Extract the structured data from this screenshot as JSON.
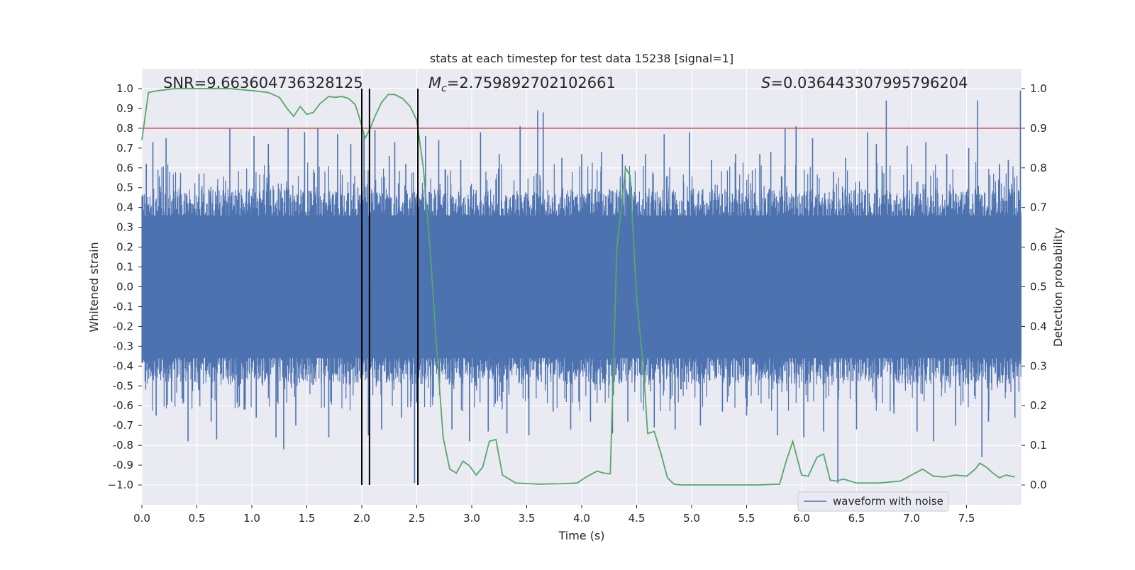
{
  "chart_data": {
    "type": "line",
    "title": "stats at each timestep for test data 15238 [signal=1]",
    "xlabel": "Time (s)",
    "ylabel": "Whitened strain",
    "ylabel_right": "Detection probability",
    "xlim": [
      0.0,
      8.0
    ],
    "ylim": [
      -1.1,
      1.1
    ],
    "ylim_right": [
      -0.05,
      1.05
    ],
    "x_ticks": [
      "0.0",
      "0.5",
      "1.0",
      "1.5",
      "2.0",
      "2.5",
      "3.0",
      "3.5",
      "4.0",
      "4.5",
      "5.0",
      "5.5",
      "6.0",
      "6.5",
      "7.0",
      "7.5"
    ],
    "y_ticks": [
      "1.0",
      "0.9",
      "0.8",
      "0.7",
      "0.6",
      "0.5",
      "0.4",
      "0.3",
      "0.2",
      "0.1",
      "0.0",
      "-0.1",
      "-0.2",
      "-0.3",
      "-0.4",
      "-0.5",
      "-0.6",
      "-0.7",
      "-0.8",
      "-0.9",
      "−1.0"
    ],
    "y_tick_values": [
      1.0,
      0.9,
      0.8,
      0.7,
      0.6,
      0.5,
      0.4,
      0.3,
      0.2,
      0.1,
      0.0,
      -0.1,
      -0.2,
      -0.3,
      -0.4,
      -0.5,
      -0.6,
      -0.7,
      -0.8,
      -0.9,
      -1.0
    ],
    "y_right_ticks": [
      "1.0",
      "0.9",
      "0.8",
      "0.7",
      "0.6",
      "0.5",
      "0.4",
      "0.3",
      "0.2",
      "0.1",
      "0.0"
    ],
    "y_right_tick_values": [
      1.0,
      0.9,
      0.8,
      0.7,
      0.6,
      0.5,
      0.4,
      0.3,
      0.2,
      0.1,
      0.0
    ],
    "annotations": {
      "snr": "SNR=9.663604736328125",
      "mc_symbol": "M",
      "mc_sub": "c",
      "mc_value": "=2.759892702102661",
      "s_symbol": "S",
      "s_value": "=0.036443307995796204"
    },
    "threshold": {
      "value": 0.9,
      "axis": "right",
      "color": "#c44e52"
    },
    "vertical_lines": [
      2.0,
      2.07,
      2.51
    ],
    "waveform": {
      "name": "waveform with noise",
      "color": "#4c72b0",
      "typical_envelope": 0.45,
      "spikes": [
        [
          0.04,
          0.62
        ],
        [
          0.1,
          0.73
        ],
        [
          0.13,
          -0.65
        ],
        [
          0.22,
          0.75
        ],
        [
          0.27,
          -0.58
        ],
        [
          0.42,
          -0.78
        ],
        [
          0.52,
          0.57
        ],
        [
          0.63,
          -0.68
        ],
        [
          0.68,
          -0.77
        ],
        [
          0.8,
          0.8
        ],
        [
          0.93,
          -0.62
        ],
        [
          1.02,
          0.76
        ],
        [
          1.04,
          -0.66
        ],
        [
          1.15,
          0.72
        ],
        [
          1.22,
          -0.76
        ],
        [
          1.29,
          -0.82
        ],
        [
          1.33,
          0.8
        ],
        [
          1.4,
          -0.7
        ],
        [
          1.48,
          0.78
        ],
        [
          1.6,
          0.8
        ],
        [
          1.7,
          -0.76
        ],
        [
          1.78,
          0.77
        ],
        [
          1.9,
          0.72
        ],
        [
          2.02,
          0.78
        ],
        [
          2.06,
          -0.75
        ],
        [
          2.12,
          0.79
        ],
        [
          2.18,
          -0.72
        ],
        [
          2.25,
          0.66
        ],
        [
          2.3,
          0.73
        ],
        [
          2.36,
          -0.66
        ],
        [
          2.4,
          0.62
        ],
        [
          2.48,
          -0.99
        ],
        [
          2.58,
          0.76
        ],
        [
          2.7,
          0.74
        ],
        [
          2.82,
          -0.72
        ],
        [
          2.9,
          0.64
        ],
        [
          2.98,
          -0.78
        ],
        [
          3.08,
          0.78
        ],
        [
          3.15,
          -0.73
        ],
        [
          3.25,
          0.67
        ],
        [
          3.32,
          -0.74
        ],
        [
          3.44,
          0.81
        ],
        [
          3.52,
          -0.75
        ],
        [
          3.6,
          0.89
        ],
        [
          3.65,
          0.88
        ],
        [
          3.74,
          -0.63
        ],
        [
          3.82,
          0.65
        ],
        [
          3.9,
          -0.72
        ],
        [
          4.0,
          0.67
        ],
        [
          4.08,
          -0.68
        ],
        [
          4.18,
          0.68
        ],
        [
          4.28,
          -0.74
        ],
        [
          4.37,
          0.67
        ],
        [
          4.42,
          -0.68
        ],
        [
          4.58,
          0.67
        ],
        [
          4.66,
          -0.71
        ],
        [
          4.75,
          0.77
        ],
        [
          4.85,
          -0.72
        ],
        [
          4.98,
          0.78
        ],
        [
          5.08,
          -0.7
        ],
        [
          5.18,
          0.64
        ],
        [
          5.28,
          -0.63
        ],
        [
          5.4,
          0.67
        ],
        [
          5.5,
          -0.65
        ],
        [
          5.62,
          0.67
        ],
        [
          5.72,
          0.68
        ],
        [
          5.78,
          -0.75
        ],
        [
          5.85,
          0.8
        ],
        [
          5.95,
          0.81
        ],
        [
          6.02,
          -0.76
        ],
        [
          6.1,
          0.75
        ],
        [
          6.2,
          -0.73
        ],
        [
          6.29,
          0.58
        ],
        [
          6.33,
          -0.99
        ],
        [
          6.4,
          0.65
        ],
        [
          6.5,
          -0.72
        ],
        [
          6.6,
          0.78
        ],
        [
          6.68,
          0.72
        ],
        [
          6.77,
          0.94
        ],
        [
          6.84,
          -0.64
        ],
        [
          6.96,
          0.71
        ],
        [
          7.05,
          -0.73
        ],
        [
          7.13,
          0.73
        ],
        [
          7.2,
          -0.78
        ],
        [
          7.32,
          0.67
        ],
        [
          7.4,
          -0.7
        ],
        [
          7.52,
          0.7
        ],
        [
          7.6,
          0.94
        ],
        [
          7.64,
          -0.86
        ],
        [
          7.7,
          -0.68
        ],
        [
          7.8,
          0.62
        ],
        [
          7.88,
          0.64
        ],
        [
          7.94,
          -0.66
        ],
        [
          7.99,
          0.99
        ]
      ]
    },
    "detection_probability": {
      "color": "#55a868",
      "x": [
        0.0,
        0.06,
        0.15,
        0.3,
        0.5,
        0.8,
        1.0,
        1.15,
        1.25,
        1.32,
        1.38,
        1.44,
        1.5,
        1.56,
        1.62,
        1.7,
        1.76,
        1.82,
        1.88,
        1.94,
        1.98,
        2.03,
        2.07,
        2.12,
        2.18,
        2.24,
        2.3,
        2.37,
        2.44,
        2.5,
        2.56,
        2.62,
        2.68,
        2.74,
        2.8,
        2.86,
        2.92,
        2.98,
        3.04,
        3.1,
        3.16,
        3.22,
        3.28,
        3.4,
        3.6,
        3.8,
        3.96,
        4.04,
        4.14,
        4.2,
        4.26,
        4.32,
        4.4,
        4.44,
        4.5,
        4.56,
        4.6,
        4.66,
        4.72,
        4.78,
        4.84,
        4.9,
        5.0,
        5.2,
        5.4,
        5.6,
        5.8,
        5.86,
        5.92,
        6.0,
        6.06,
        6.14,
        6.2,
        6.26,
        6.32,
        6.38,
        6.5,
        6.7,
        6.9,
        7.0,
        7.1,
        7.2,
        7.3,
        7.4,
        7.5,
        7.58,
        7.62,
        7.68,
        7.74,
        7.8,
        7.86,
        7.94
      ],
      "y": [
        0.87,
        0.99,
        0.995,
        1.0,
        1.0,
        1.0,
        0.995,
        0.99,
        0.978,
        0.95,
        0.93,
        0.955,
        0.935,
        0.94,
        0.962,
        0.98,
        0.978,
        0.98,
        0.975,
        0.96,
        0.925,
        0.875,
        0.895,
        0.93,
        0.965,
        0.985,
        0.985,
        0.975,
        0.955,
        0.92,
        0.8,
        0.6,
        0.35,
        0.12,
        0.04,
        0.03,
        0.06,
        0.048,
        0.025,
        0.045,
        0.11,
        0.115,
        0.025,
        0.005,
        0.002,
        0.003,
        0.005,
        0.02,
        0.035,
        0.03,
        0.028,
        0.6,
        0.8,
        0.78,
        0.47,
        0.3,
        0.13,
        0.135,
        0.08,
        0.018,
        0.002,
        0.0,
        0.0,
        0.0,
        0.0,
        0.0,
        0.002,
        0.06,
        0.11,
        0.025,
        0.022,
        0.07,
        0.078,
        0.012,
        0.01,
        0.015,
        0.005,
        0.005,
        0.01,
        0.025,
        0.04,
        0.022,
        0.02,
        0.025,
        0.022,
        0.04,
        0.055,
        0.045,
        0.03,
        0.018,
        0.025,
        0.02
      ]
    },
    "legend": {
      "label": "waveform with noise",
      "position": "lower-right"
    },
    "grid": true
  }
}
